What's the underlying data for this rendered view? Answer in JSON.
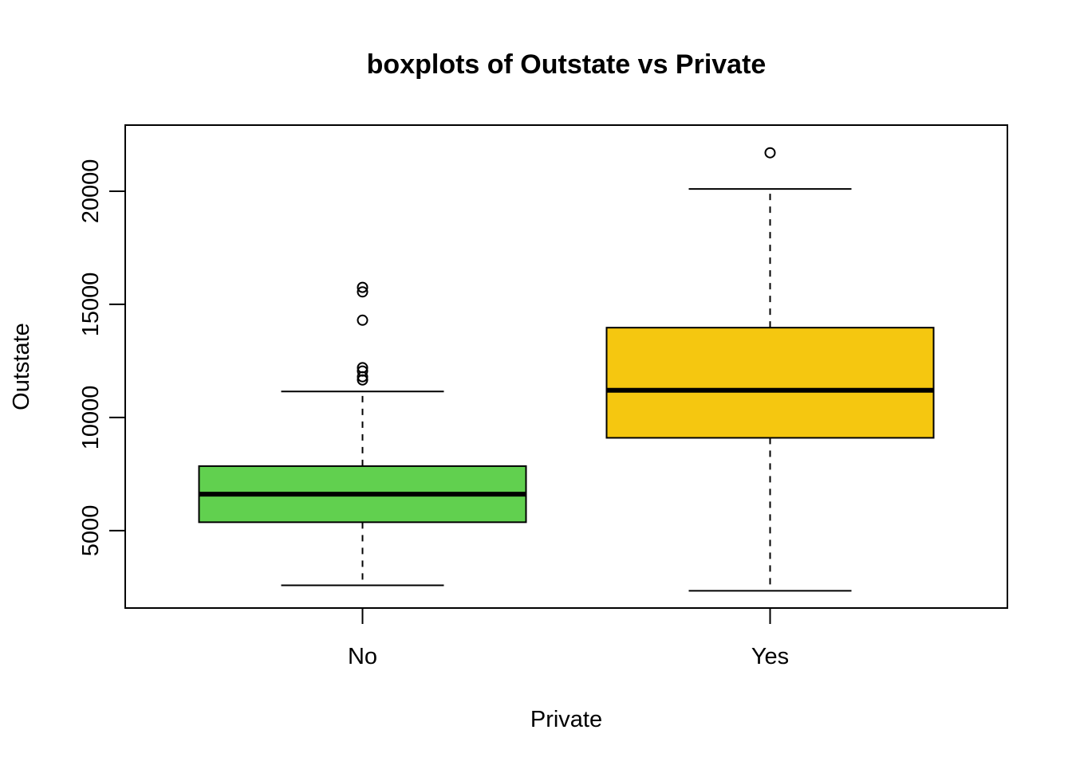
{
  "chart_data": {
    "type": "boxplot",
    "title": "boxplots of Outstate vs Private",
    "xlabel": "Private",
    "ylabel": "Outstate",
    "categories": [
      "No",
      "Yes"
    ],
    "yticks": [
      5000,
      10000,
      15000,
      20000
    ],
    "ylim": [
      2000,
      22500
    ],
    "grid": false,
    "boxes": [
      {
        "category": "No",
        "fill": "#61D04F",
        "whisker_low": 2580,
        "q1": 5370,
        "median": 6610,
        "q3": 7850,
        "whisker_high": 11150,
        "outliers": [
          11660,
          11800,
          12050,
          12200,
          14300,
          15550,
          15750
        ]
      },
      {
        "category": "Yes",
        "fill": "#F5C710",
        "whisker_low": 2340,
        "q1": 9100,
        "median": 11200,
        "q3": 13970,
        "whisker_high": 20100,
        "outliers": [
          21700
        ]
      }
    ]
  }
}
